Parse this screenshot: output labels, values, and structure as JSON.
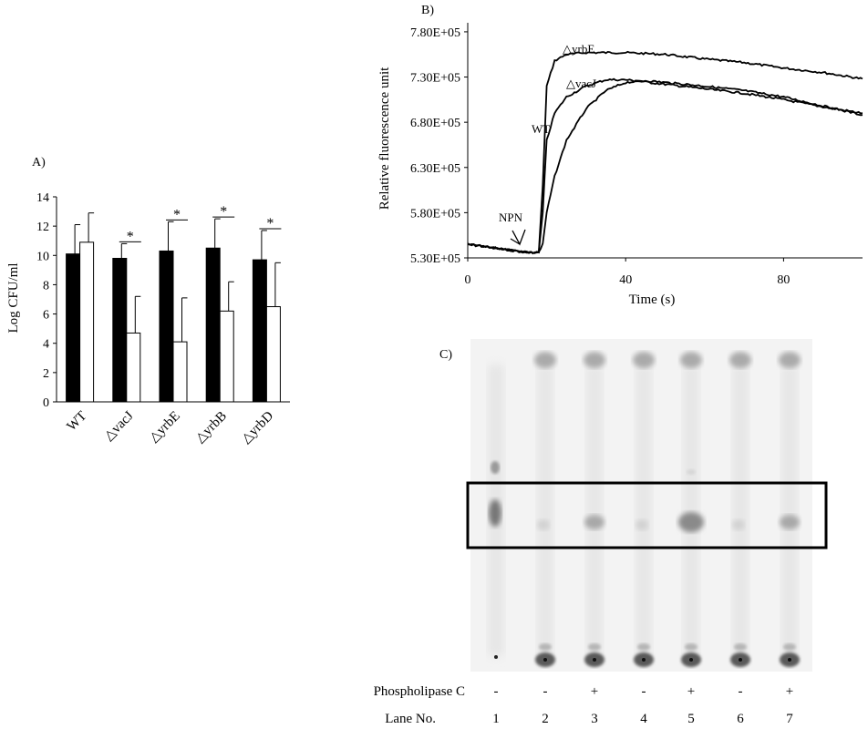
{
  "panel_a": {
    "label": "A)",
    "chart_data": {
      "type": "bar",
      "categories": [
        "WT",
        "△vacJ",
        "△yrbE",
        "△yrbB",
        "△yrbD"
      ],
      "ylabel": "Log CFU/ml",
      "xlabel": "",
      "ylim": [
        0,
        14
      ],
      "yticks": [
        0,
        2,
        4,
        6,
        8,
        10,
        12,
        14
      ],
      "series": [
        {
          "values": [
            10.1,
            9.8,
            10.3,
            10.5,
            9.7
          ],
          "errors": [
            2.0,
            1.0,
            2.0,
            2.0,
            2.0
          ],
          "color": "#000000"
        },
        {
          "values": [
            10.9,
            4.7,
            4.1,
            6.2,
            6.5
          ],
          "errors": [
            2.0,
            2.5,
            3.0,
            2.0,
            3.0
          ],
          "color": "#ffffff"
        }
      ],
      "significance": [
        "",
        "*",
        "*",
        "*",
        "*"
      ]
    }
  },
  "panel_b": {
    "label": "B)",
    "chart_data": {
      "type": "line",
      "xlabel": "Time (s)",
      "ylabel": "Relative fluorescence unit",
      "xlim": [
        0,
        100
      ],
      "ylim": [
        530000,
        790000
      ],
      "xticks": [
        0,
        40,
        80
      ],
      "yticks": [
        530000,
        580000,
        630000,
        680000,
        730000,
        780000
      ],
      "ytick_labels": [
        "5.30E+05",
        "5.80E+05",
        "6.30E+05",
        "6.80E+05",
        "7.30E+05",
        "7.80E+05"
      ],
      "series": [
        {
          "name": "△yrbE",
          "x": [
            0,
            15,
            18,
            19,
            20,
            22,
            25,
            30,
            40,
            50,
            60,
            70,
            80,
            90,
            100
          ],
          "y": [
            545000,
            536000,
            536000,
            610000,
            720000,
            748000,
            755000,
            757000,
            757000,
            755000,
            750000,
            746000,
            740000,
            735000,
            728000
          ]
        },
        {
          "name": "△vacJ",
          "x": [
            0,
            15,
            18,
            19,
            20,
            22,
            25,
            30,
            35,
            40,
            50,
            60,
            70,
            80,
            90,
            100
          ],
          "y": [
            545000,
            536000,
            536000,
            580000,
            660000,
            690000,
            708000,
            720000,
            727000,
            727000,
            722000,
            717000,
            712000,
            705000,
            697000,
            690000
          ]
        },
        {
          "name": "WT",
          "x": [
            0,
            15,
            18,
            19,
            20,
            22,
            25,
            30,
            35,
            40,
            45,
            50,
            60,
            70,
            80,
            90,
            100
          ],
          "y": [
            545000,
            536000,
            536000,
            545000,
            580000,
            620000,
            660000,
            695000,
            715000,
            724000,
            726000,
            724000,
            720000,
            715000,
            708000,
            698000,
            688000
          ]
        }
      ],
      "annotations": [
        {
          "text": "NPN",
          "x": 12,
          "y": 545000
        }
      ]
    }
  },
  "panel_c": {
    "label": "C)",
    "treatment_label": "Phospholipase C",
    "lane_label": "Lane No.",
    "lanes": [
      {
        "no": "1",
        "treatment": "-"
      },
      {
        "no": "2",
        "treatment": "-"
      },
      {
        "no": "3",
        "treatment": "+"
      },
      {
        "no": "4",
        "treatment": "-"
      },
      {
        "no": "5",
        "treatment": "+"
      },
      {
        "no": "6",
        "treatment": "-"
      },
      {
        "no": "7",
        "treatment": "+"
      }
    ]
  }
}
